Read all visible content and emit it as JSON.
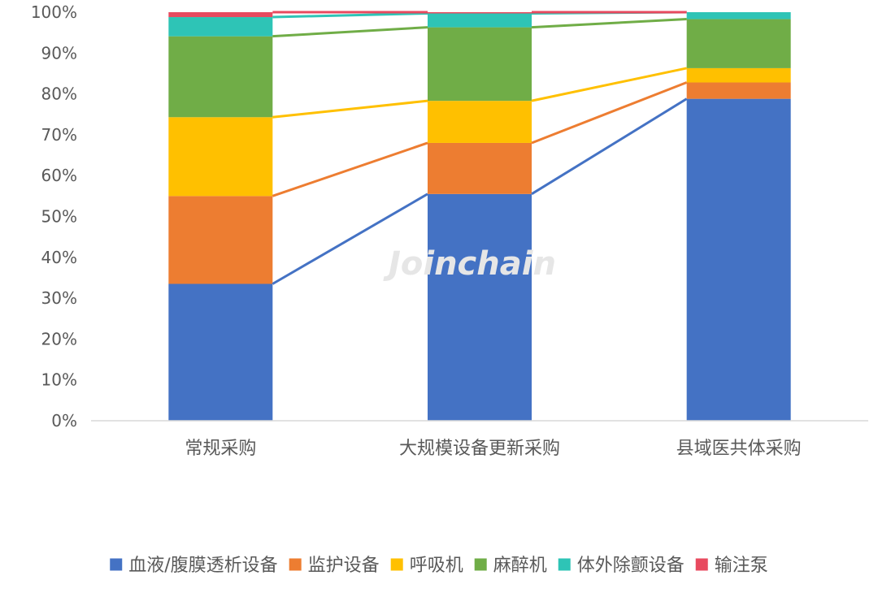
{
  "watermark": "Joinchain",
  "chart_data": {
    "type": "bar",
    "stacked": true,
    "percent": true,
    "categories": [
      "常规采购",
      "大规模设备更新采购",
      "县域医共体采购"
    ],
    "series": [
      {
        "name": "血液/腹膜透析设备",
        "color": "#4472C4",
        "values": [
          33.5,
          55.5,
          78.8
        ]
      },
      {
        "name": "监护设备",
        "color": "#ED7D31",
        "values": [
          21.5,
          12.5,
          4.0
        ]
      },
      {
        "name": "呼吸机",
        "color": "#FFC000",
        "values": [
          19.3,
          10.3,
          3.5
        ]
      },
      {
        "name": "麻醉机",
        "color": "#70AD47",
        "values": [
          19.8,
          18.0,
          12.0
        ]
      },
      {
        "name": "体外除颤设备",
        "color": "#2EC4B6",
        "values": [
          4.7,
          3.4,
          1.7
        ]
      },
      {
        "name": "输注泵",
        "color": "#E84A5F",
        "values": [
          1.2,
          0.3,
          0.0
        ]
      }
    ],
    "ylim": [
      0,
      100
    ],
    "yticks": [
      "0%",
      "10%",
      "20%",
      "30%",
      "40%",
      "50%",
      "60%",
      "70%",
      "80%",
      "90%",
      "100%"
    ],
    "series_lines": true,
    "legend_position": "bottom"
  }
}
